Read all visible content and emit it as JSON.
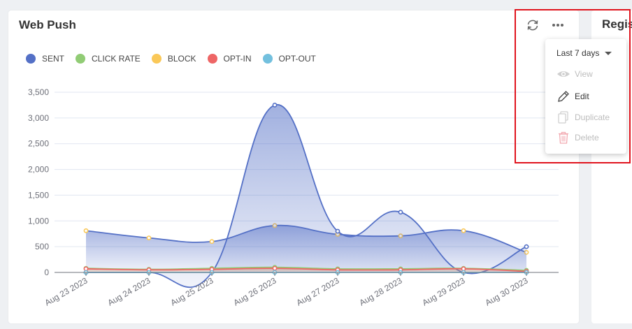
{
  "card": {
    "title": "Web Push"
  },
  "next_card": {
    "title": "Regis"
  },
  "toolbar": {
    "refresh_icon": "refresh-icon",
    "more_icon": "more-horizontal-icon"
  },
  "menu": {
    "period": "Last 7 days",
    "items": [
      {
        "label": "View",
        "icon": "eye-icon",
        "enabled": false
      },
      {
        "label": "Edit",
        "icon": "pencil-icon",
        "enabled": true
      },
      {
        "label": "Duplicate",
        "icon": "copy-icon",
        "enabled": false
      },
      {
        "label": "Delete",
        "icon": "trash-icon",
        "enabled": false
      }
    ]
  },
  "chart_data": {
    "type": "area",
    "categories": [
      "Aug 23 2023",
      "Aug 24 2023",
      "Aug 25 2023",
      "Aug 26 2023",
      "Aug 27 2023",
      "Aug 28 2023",
      "Aug 29 2023",
      "Aug 30 2023"
    ],
    "yticks": [
      "0",
      "500",
      "1,000",
      "1,500",
      "2,000",
      "2,500",
      "3,000",
      "3,500"
    ],
    "ylim": [
      0,
      3500
    ],
    "grid": true,
    "legend_position": "top-left",
    "series": [
      {
        "name": "SENT",
        "color": "#5470c6",
        "values": [
          0,
          0,
          0,
          3250,
          800,
          1170,
          0,
          500
        ]
      },
      {
        "name": "CLICK RATE",
        "color": "#91cc75",
        "values": [
          80,
          60,
          80,
          100,
          70,
          70,
          80,
          40
        ]
      },
      {
        "name": "BLOCK",
        "color": "#fac858",
        "values": [
          810,
          670,
          600,
          910,
          740,
          710,
          810,
          390
        ]
      },
      {
        "name": "OPT-IN",
        "color": "#ee6666",
        "values": [
          70,
          50,
          60,
          80,
          50,
          50,
          70,
          20
        ]
      },
      {
        "name": "OPT-OUT",
        "color": "#73c0de",
        "values": [
          0,
          0,
          0,
          0,
          0,
          0,
          0,
          0
        ]
      }
    ]
  }
}
